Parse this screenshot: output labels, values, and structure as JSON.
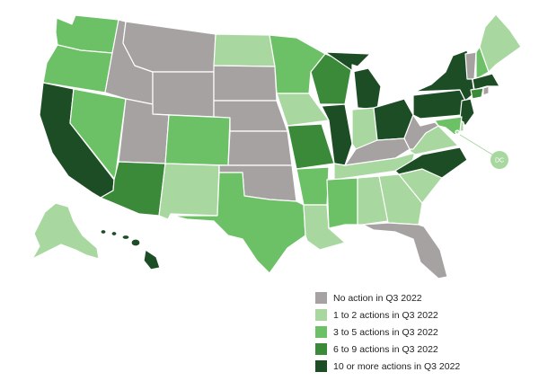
{
  "colors": {
    "none": "#a5a2a1",
    "light": "#a8d8a0",
    "mid": "#6cc166",
    "dark": "#3b8a3a",
    "darkest": "#1d4d25"
  },
  "dc_label": "DC",
  "legend": [
    {
      "key": "none",
      "label": "No action in Q3 2022"
    },
    {
      "key": "light",
      "label": "1 to 2 actions in Q3 2022"
    },
    {
      "key": "mid",
      "label": "3 to 5 actions in Q3 2022"
    },
    {
      "key": "dark",
      "label": "6 to 9 actions in Q3 2022"
    },
    {
      "key": "darkest",
      "label": "10 or more actions in Q3 2022"
    }
  ],
  "states": {
    "WA": "mid",
    "OR": "mid",
    "CA": "darkest",
    "NV": "mid",
    "ID": "none",
    "MT": "none",
    "WY": "none",
    "UT": "none",
    "AZ": "dark",
    "CO": "mid",
    "NM": "light",
    "ND": "light",
    "SD": "none",
    "NE": "none",
    "KS": "none",
    "OK": "none",
    "TX": "mid",
    "MN": "mid",
    "IA": "light",
    "MO": "dark",
    "AR": "mid",
    "LA": "light",
    "WI": "dark",
    "IL": "darkest",
    "MI": "darkest",
    "IN": "light",
    "OH": "darkest",
    "KY": "none",
    "TN": "light",
    "MS": "mid",
    "AL": "light",
    "GA": "light",
    "FL": "none",
    "SC": "light",
    "NC": "darkest",
    "VA": "light",
    "WV": "none",
    "PA": "darkest",
    "NY": "darkest",
    "VT": "none",
    "NH": "mid",
    "ME": "light",
    "MA": "darkest",
    "RI": "none",
    "CT": "dark",
    "NJ": "darkest",
    "DE": "light",
    "MD": "mid",
    "DC": "light",
    "AK": "light",
    "HI": "darkest"
  }
}
